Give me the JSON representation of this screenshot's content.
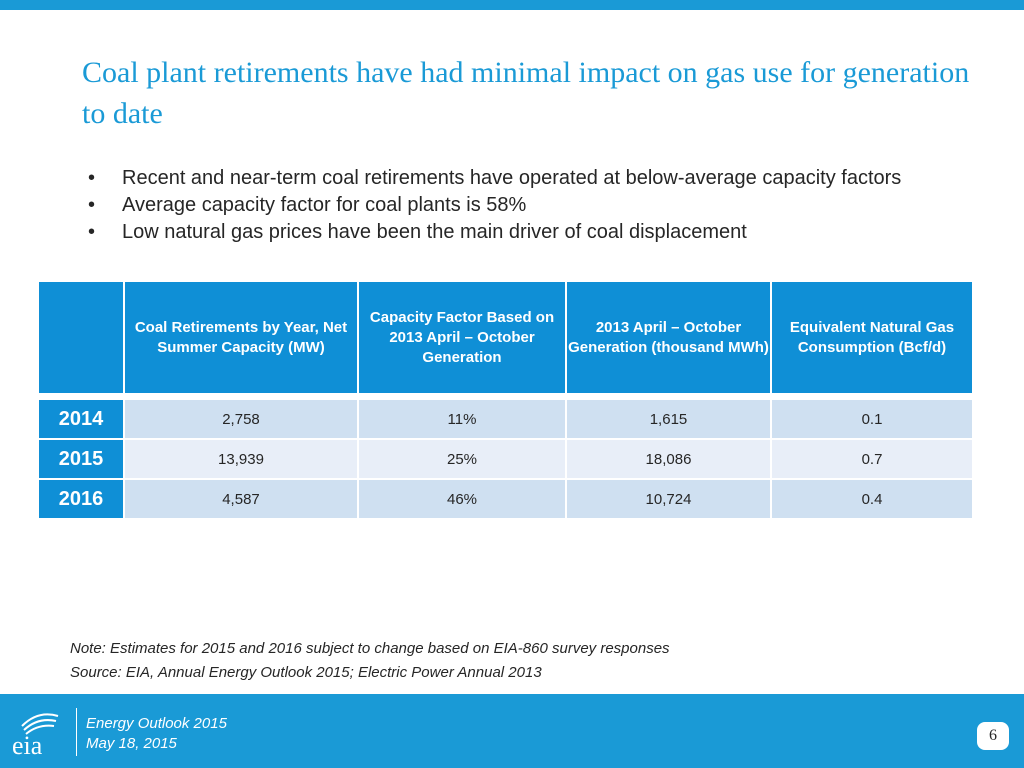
{
  "slide": {
    "title": "Coal plant retirements have had minimal impact on gas use for generation to date",
    "bullet_marker": "•",
    "bullets": [
      "Recent and near-term coal retirements have operated at below-average capacity factors",
      "Average capacity factor for coal plants is 58%",
      "Low natural gas prices have been the main driver of coal displacement"
    ]
  },
  "table": {
    "headers": [
      "",
      "Coal Retirements by Year, Net Summer Capacity (MW)",
      "Capacity Factor Based on 2013 April – October Generation",
      "2013 April – October Generation (thousand MWh)",
      "Equivalent Natural Gas Consumption (Bcf/d)"
    ],
    "rows": [
      {
        "year": "2014",
        "retirements": "2,758",
        "capacity_factor": "11%",
        "generation": "1,615",
        "gas": "0.1"
      },
      {
        "year": "2015",
        "retirements": "13,939",
        "capacity_factor": "25%",
        "generation": "18,086",
        "gas": "0.7"
      },
      {
        "year": "2016",
        "retirements": "4,587",
        "capacity_factor": "46%",
        "generation": "10,724",
        "gas": "0.4"
      }
    ]
  },
  "notes": {
    "note": "Note: Estimates for 2015 and 2016 subject to change based on EIA-860 survey responses",
    "source": "Source: EIA, Annual Energy Outlook 2015; Electric Power Annual 2013"
  },
  "footer": {
    "logo_text": "eia",
    "line1": "Energy  Outlook 2015",
    "line2": "May 18, 2015",
    "page_number": "6"
  },
  "colors": {
    "accent": "#1a9ad6",
    "header_fill": "#0f8fd6",
    "row_fill_1": "#cfe0f1",
    "row_fill_2": "#e8eef8"
  }
}
